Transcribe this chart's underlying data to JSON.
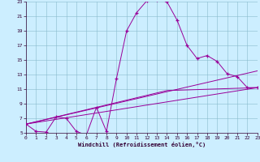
{
  "xlabel": "Windchill (Refroidissement éolien,°C)",
  "bg_color": "#cceeff",
  "line_color": "#990099",
  "xlim": [
    0,
    23
  ],
  "ylim": [
    5,
    23
  ],
  "xticks": [
    0,
    1,
    2,
    3,
    4,
    5,
    6,
    7,
    8,
    9,
    10,
    11,
    12,
    13,
    14,
    15,
    16,
    17,
    18,
    19,
    20,
    21,
    22,
    23
  ],
  "yticks": [
    5,
    7,
    9,
    11,
    13,
    15,
    17,
    19,
    21,
    23
  ],
  "line1_x": [
    0,
    1,
    2,
    3,
    4,
    5,
    6,
    7,
    8,
    9,
    10,
    11,
    12,
    13,
    14,
    15,
    16,
    17,
    18,
    19,
    20,
    21,
    22,
    23
  ],
  "line1_y": [
    6.2,
    5.2,
    5.1,
    7.2,
    7.0,
    5.2,
    4.7,
    8.5,
    5.2,
    12.5,
    19.0,
    21.5,
    23.1,
    23.2,
    23.0,
    20.5,
    17.0,
    15.2,
    15.6,
    14.8,
    13.1,
    12.7,
    11.2,
    11.2
  ],
  "line2_x": [
    0,
    23
  ],
  "line2_y": [
    6.2,
    11.2
  ],
  "line3_x": [
    0,
    23
  ],
  "line3_y": [
    6.2,
    13.5
  ],
  "line4_x": [
    0,
    14,
    23
  ],
  "line4_y": [
    6.2,
    10.8,
    11.2
  ]
}
